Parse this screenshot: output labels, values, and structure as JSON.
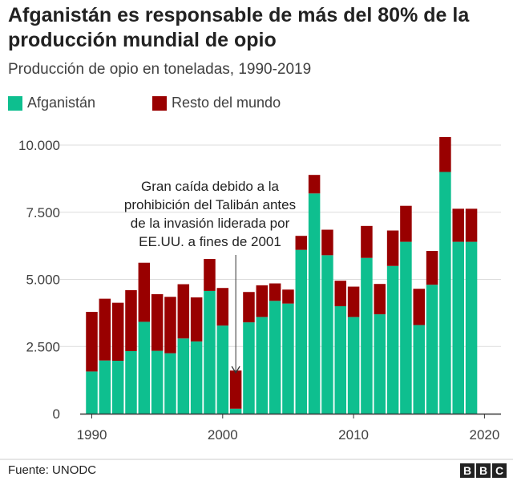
{
  "chart_data": {
    "type": "bar",
    "stacked": true,
    "title": "Afganistán es responsable de más del 80% de la producción mundial de opio",
    "subtitle": "Producción de opio en toneladas, 1990-2019",
    "x": [
      1990,
      1991,
      1992,
      1993,
      1994,
      1995,
      1996,
      1997,
      1998,
      1999,
      2000,
      2001,
      2002,
      2003,
      2004,
      2005,
      2006,
      2007,
      2008,
      2009,
      2010,
      2011,
      2012,
      2013,
      2014,
      2015,
      2016,
      2017,
      2018,
      2019
    ],
    "series": [
      {
        "name": "Afganistán",
        "color": "#0ebf8f",
        "values": [
          1570,
          1980,
          1970,
          2330,
          3420,
          2340,
          2250,
          2800,
          2690,
          4570,
          3280,
          185,
          3400,
          3600,
          4200,
          4100,
          6100,
          8200,
          5900,
          4000,
          3600,
          5800,
          3700,
          5500,
          6400,
          3300,
          4800,
          9000,
          6400,
          6400
        ]
      },
      {
        "name": "Resto del mundo",
        "color": "#990000",
        "values": [
          2220,
          2300,
          2160,
          2270,
          2200,
          2110,
          2100,
          2020,
          1640,
          1190,
          1400,
          1420,
          1130,
          1180,
          650,
          520,
          520,
          690,
          950,
          950,
          1130,
          1190,
          1130,
          1320,
          1340,
          1350,
          1260,
          1300,
          1230,
          1230
        ]
      }
    ],
    "ylim": [
      0,
      10500
    ],
    "yticks": [
      0,
      2500,
      5000,
      7500,
      10000
    ],
    "ytick_labels": [
      "0",
      "2.500",
      "5.000",
      "7.500",
      "10.000"
    ],
    "xticks": [
      1990,
      2000,
      2010,
      2020
    ],
    "xtick_labels": [
      "1990",
      "2000",
      "2010",
      "2020"
    ],
    "grid": true,
    "legend": "top-left",
    "annotation": {
      "year": 2001,
      "lines": [
        "Gran caída debido a la",
        "prohibición del Talibán antes",
        "de la invasión liderada por",
        "EE.UU. a fines de 2001"
      ]
    }
  },
  "footer": {
    "source": "Fuente: UNODC",
    "logo": [
      "B",
      "B",
      "C"
    ]
  }
}
